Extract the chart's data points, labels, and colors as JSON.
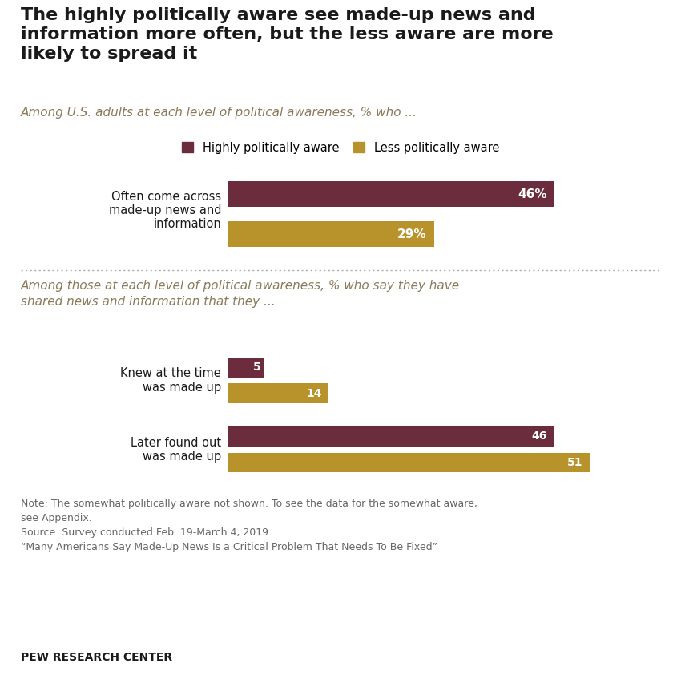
{
  "title": "The highly politically aware see made-up news and\ninformation more often, but the less aware are more\nlikely to spread it",
  "subtitle1": "Among U.S. adults at each level of political awareness, % who ...",
  "subtitle2": "Among those at each level of political awareness, % who say they have\nshared news and information that they ...",
  "legend_labels": [
    "Highly politically aware",
    "Less politically aware"
  ],
  "color_high": "#6b2d3e",
  "color_less": "#b8922a",
  "section1_categories": [
    "Often come across\nmade-up news and\ninformation"
  ],
  "section1_high": [
    46
  ],
  "section1_less": [
    29
  ],
  "section1_labels": [
    "46%",
    "29%"
  ],
  "section2_categories": [
    "Knew at the time\nwas made up",
    "Later found out\nwas made up"
  ],
  "section2_high": [
    5,
    46
  ],
  "section2_less": [
    14,
    51
  ],
  "note_text": "Note: The somewhat politically aware not shown. To see the data for the somewhat aware,\nsee Appendix.\nSource: Survey conducted Feb. 19-March 4, 2019.\n“Many Americans Say Made-Up News Is a Critical Problem That Needs To Be Fixed”",
  "source_label": "PEW RESEARCH CENTER",
  "xlim": [
    0,
    60
  ],
  "background_color": "#ffffff"
}
